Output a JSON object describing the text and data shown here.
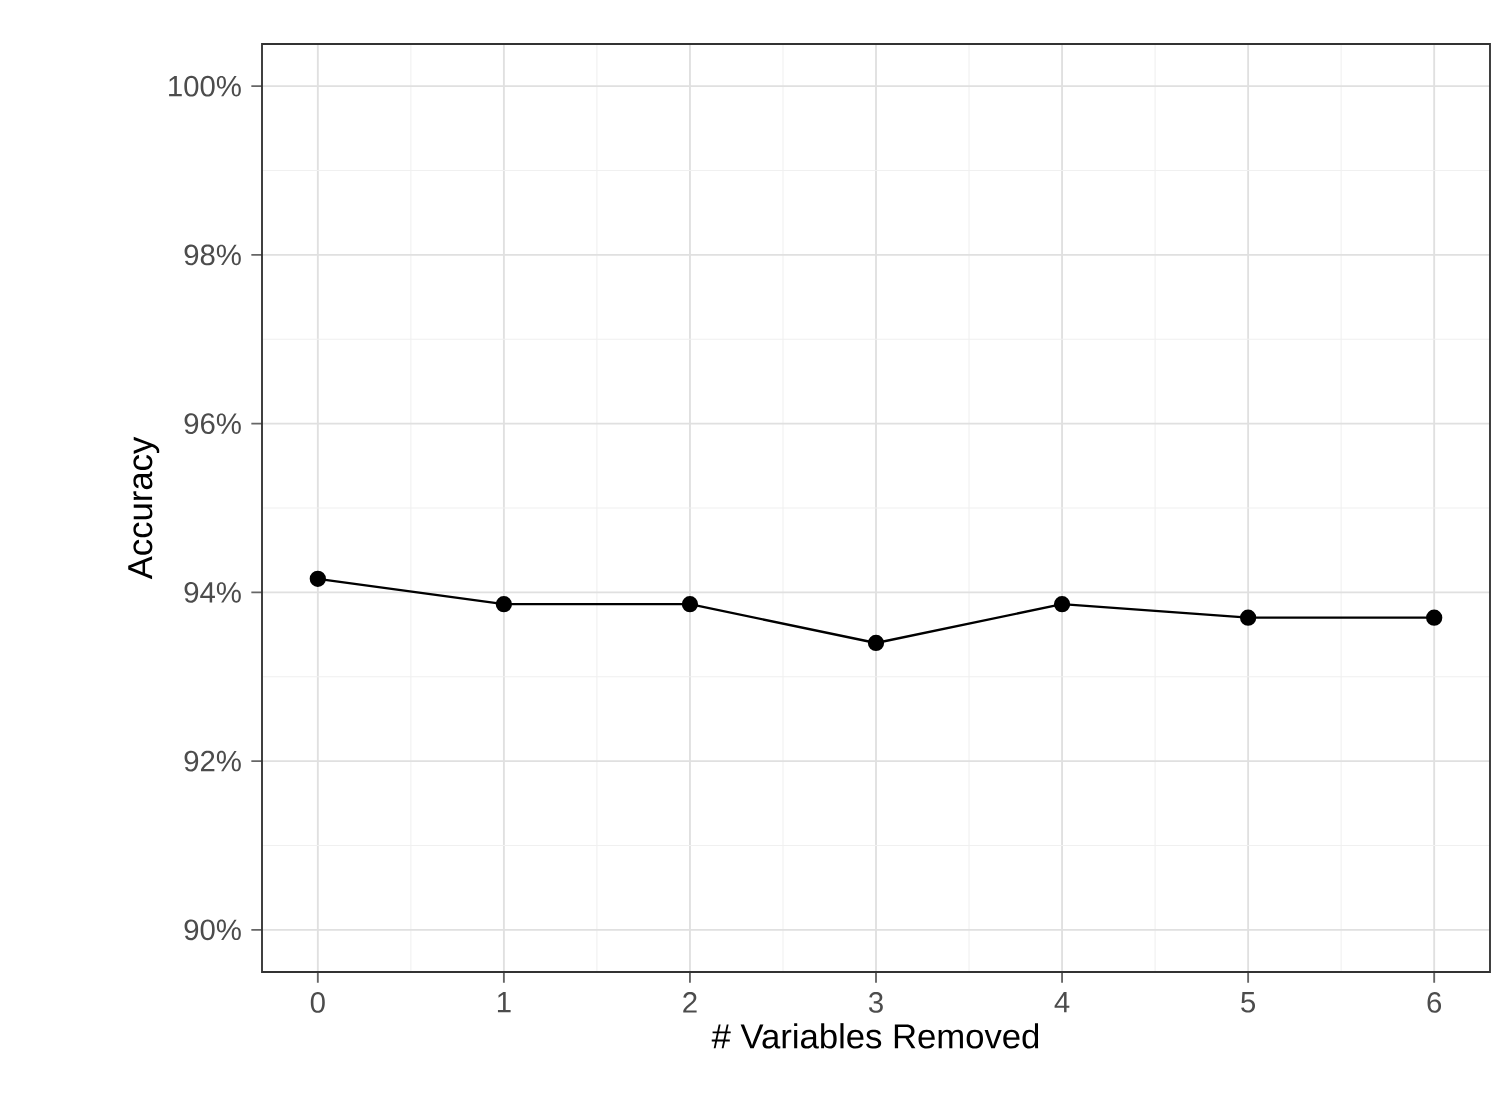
{
  "chart_data": {
    "type": "line",
    "xlabel": "# Variables Removed",
    "ylabel": "Accuracy",
    "x": [
      0,
      1,
      2,
      3,
      4,
      5,
      6
    ],
    "series": [
      {
        "color": "#000000",
        "values": [
          94.16,
          93.86,
          93.86,
          93.4,
          93.86,
          93.7,
          93.7
        ]
      }
    ],
    "xlim": [
      -0.3,
      6.3
    ],
    "ylim": [
      89.5,
      100.5
    ],
    "xticks": [
      0,
      1,
      2,
      3,
      4,
      5,
      6
    ],
    "yticks": [
      {
        "value": 90,
        "label": "90%"
      },
      {
        "value": 92,
        "label": "92%"
      },
      {
        "value": 94,
        "label": "94%"
      },
      {
        "value": 96,
        "label": "96%"
      },
      {
        "value": 98,
        "label": "98%"
      },
      {
        "value": 100,
        "label": "100%"
      }
    ],
    "grid": true,
    "marker": "circle",
    "line_style": "solid"
  }
}
